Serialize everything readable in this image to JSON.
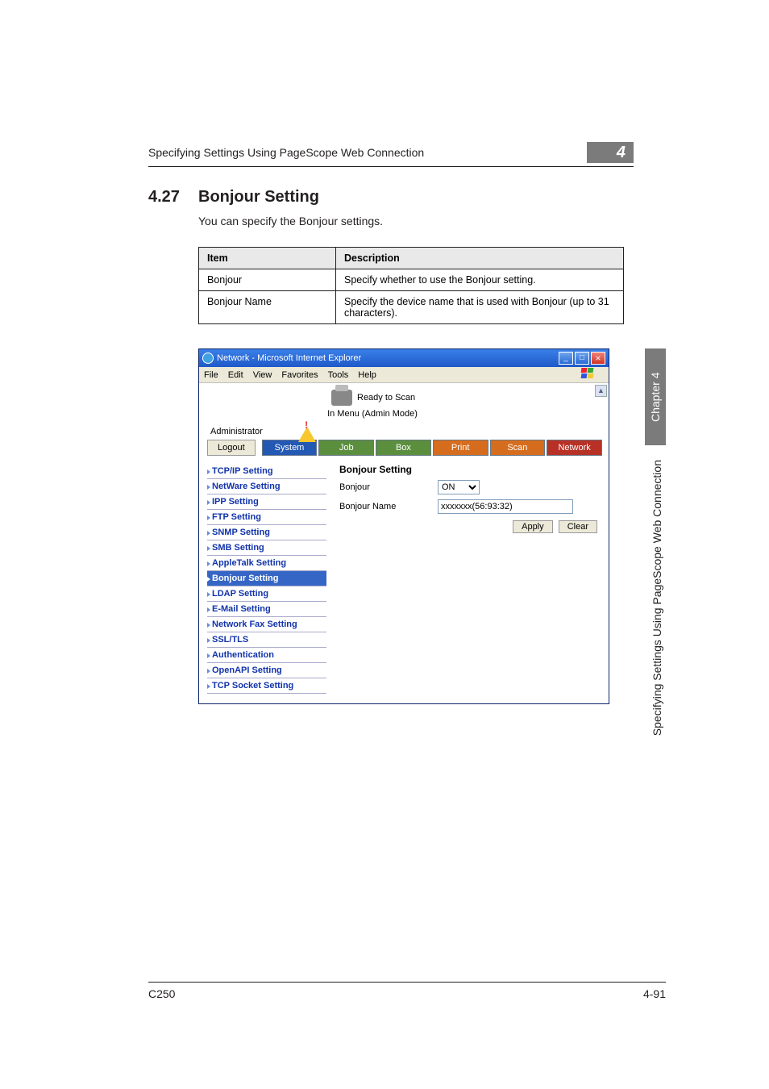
{
  "header": {
    "running_title": "Specifying Settings Using PageScope Web Connection",
    "badge_number": "4"
  },
  "section": {
    "number": "4.27",
    "title": "Bonjour Setting",
    "intro": "You can specify the Bonjour settings."
  },
  "spec_table": {
    "headers": [
      "Item",
      "Description"
    ],
    "rows": [
      [
        "Bonjour",
        "Specify whether to use the Bonjour setting."
      ],
      [
        "Bonjour Name",
        "Specify the device name that is used with Bonjour (up to 31 characters)."
      ]
    ]
  },
  "screenshot": {
    "window_title": "Network - Microsoft Internet Explorer",
    "menus": [
      "File",
      "Edit",
      "View",
      "Favorites",
      "Tools",
      "Help"
    ],
    "status_line1": "Ready to Scan",
    "status_line2": "In Menu (Admin Mode)",
    "admin_label": "Administrator",
    "logout_label": "Logout",
    "tabs": {
      "system": "System",
      "job": "Job",
      "box": "Box",
      "print": "Print",
      "scan": "Scan",
      "network": "Network"
    },
    "sidebar": [
      "TCP/IP Setting",
      "NetWare Setting",
      "IPP Setting",
      "FTP Setting",
      "SNMP Setting",
      "SMB Setting",
      "AppleTalk Setting",
      "Bonjour Setting",
      "LDAP Setting",
      "E-Mail Setting",
      "Network Fax Setting",
      "SSL/TLS",
      "Authentication",
      "OpenAPI Setting",
      "TCP Socket Setting"
    ],
    "active_index": 7,
    "pane_title": "Bonjour Setting",
    "field_bonjour_label": "Bonjour",
    "field_bonjour_value": "ON",
    "field_name_label": "Bonjour Name",
    "field_name_value": "xxxxxxx(56:93:32)",
    "btn_apply": "Apply",
    "btn_clear": "Clear"
  },
  "side": {
    "chapter": "Chapter 4",
    "caption": "Specifying Settings Using PageScope Web Connection"
  },
  "footer": {
    "left": "C250",
    "right": "4-91"
  }
}
